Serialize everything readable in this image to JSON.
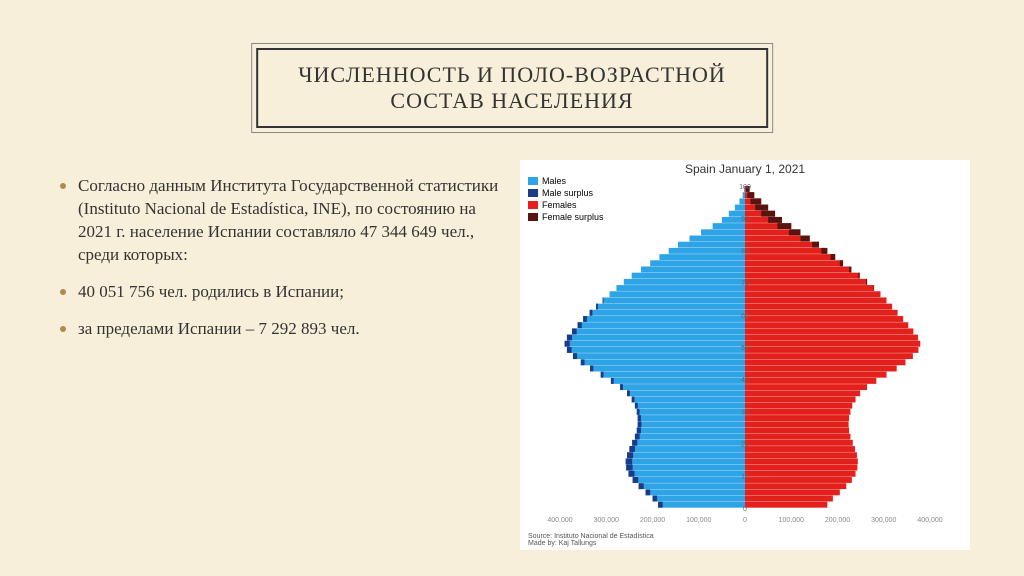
{
  "title_line1": "ЧИСЛЕННОСТЬ И ПОЛО-ВОЗРАСТНОЙ",
  "title_line2": "СОСТАВ НАСЕЛЕНИЯ",
  "bullets": [
    "Согласно данным Института Государственной статистики (Instituto Nacional de Estadística, INE), по состоянию на 2021 г. население Испании составляло 47 344 649 чел., среди которых:",
    "40 051 756 чел. родились в Испании;",
    "за пределами Испании – 7 292 893 чел."
  ],
  "chart": {
    "title": "Spain January 1, 2021",
    "legend": [
      {
        "label": "Males",
        "color": "#2ea3e6"
      },
      {
        "label": "Male surplus",
        "color": "#1b3a8a"
      },
      {
        "label": "Females",
        "color": "#e3201b"
      },
      {
        "label": "Female surplus",
        "color": "#5a1410"
      }
    ],
    "colors": {
      "male": "#2ea3e6",
      "male_surplus": "#1b3a8a",
      "female": "#e3201b",
      "female_surplus": "#5a1410",
      "bg": "#ffffff",
      "axis_text": "#888888"
    },
    "x_ticks": [
      "400,000",
      "300,000",
      "200,000",
      "100,000",
      "0",
      "100,000",
      "200,000",
      "300,000",
      "400,000"
    ],
    "y_ticks": [
      "100",
      "90",
      "80",
      "70",
      "60",
      "50",
      "40",
      "30",
      "20",
      "10",
      "0"
    ],
    "max_value": 400000,
    "age_bins_top_to_bottom": [
      {
        "m": 2,
        "f": 10,
        "ms": 0,
        "fs": 8
      },
      {
        "m": 5,
        "f": 20,
        "ms": 0,
        "fs": 15
      },
      {
        "m": 12,
        "f": 35,
        "ms": 0,
        "fs": 23
      },
      {
        "m": 22,
        "f": 50,
        "ms": 0,
        "fs": 28
      },
      {
        "m": 35,
        "f": 65,
        "ms": 0,
        "fs": 30
      },
      {
        "m": 50,
        "f": 80,
        "ms": 0,
        "fs": 30
      },
      {
        "m": 70,
        "f": 100,
        "ms": 0,
        "fs": 30
      },
      {
        "m": 95,
        "f": 120,
        "ms": 0,
        "fs": 25
      },
      {
        "m": 120,
        "f": 140,
        "ms": 0,
        "fs": 20
      },
      {
        "m": 145,
        "f": 160,
        "ms": 0,
        "fs": 15
      },
      {
        "m": 165,
        "f": 178,
        "ms": 0,
        "fs": 13
      },
      {
        "m": 185,
        "f": 195,
        "ms": 0,
        "fs": 10
      },
      {
        "m": 205,
        "f": 212,
        "ms": 0,
        "fs": 7
      },
      {
        "m": 225,
        "f": 230,
        "ms": 0,
        "fs": 5
      },
      {
        "m": 245,
        "f": 248,
        "ms": 0,
        "fs": 3
      },
      {
        "m": 262,
        "f": 264,
        "ms": 0,
        "fs": 2
      },
      {
        "m": 278,
        "f": 279,
        "ms": 0,
        "fs": 1
      },
      {
        "m": 293,
        "f": 293,
        "ms": 0,
        "fs": 0
      },
      {
        "m": 308,
        "f": 306,
        "ms": 2,
        "fs": 0
      },
      {
        "m": 322,
        "f": 318,
        "ms": 4,
        "fs": 0
      },
      {
        "m": 336,
        "f": 330,
        "ms": 6,
        "fs": 0
      },
      {
        "m": 350,
        "f": 342,
        "ms": 8,
        "fs": 0
      },
      {
        "m": 362,
        "f": 353,
        "ms": 9,
        "fs": 0
      },
      {
        "m": 374,
        "f": 364,
        "ms": 10,
        "fs": 0
      },
      {
        "m": 385,
        "f": 374,
        "ms": 11,
        "fs": 0
      },
      {
        "m": 390,
        "f": 379,
        "ms": 11,
        "fs": 0
      },
      {
        "m": 385,
        "f": 375,
        "ms": 10,
        "fs": 0
      },
      {
        "m": 372,
        "f": 363,
        "ms": 9,
        "fs": 0
      },
      {
        "m": 355,
        "f": 347,
        "ms": 8,
        "fs": 0
      },
      {
        "m": 335,
        "f": 328,
        "ms": 7,
        "fs": 0
      },
      {
        "m": 312,
        "f": 306,
        "ms": 6,
        "fs": 0
      },
      {
        "m": 290,
        "f": 284,
        "ms": 6,
        "fs": 0
      },
      {
        "m": 270,
        "f": 264,
        "ms": 6,
        "fs": 0
      },
      {
        "m": 255,
        "f": 249,
        "ms": 6,
        "fs": 0
      },
      {
        "m": 245,
        "f": 239,
        "ms": 6,
        "fs": 0
      },
      {
        "m": 238,
        "f": 232,
        "ms": 6,
        "fs": 0
      },
      {
        "m": 234,
        "f": 228,
        "ms": 6,
        "fs": 0
      },
      {
        "m": 232,
        "f": 225,
        "ms": 7,
        "fs": 0
      },
      {
        "m": 232,
        "f": 224,
        "ms": 8,
        "fs": 0
      },
      {
        "m": 234,
        "f": 225,
        "ms": 9,
        "fs": 0
      },
      {
        "m": 238,
        "f": 228,
        "ms": 10,
        "fs": 0
      },
      {
        "m": 244,
        "f": 233,
        "ms": 11,
        "fs": 0
      },
      {
        "m": 250,
        "f": 238,
        "ms": 12,
        "fs": 0
      },
      {
        "m": 255,
        "f": 242,
        "ms": 13,
        "fs": 0
      },
      {
        "m": 258,
        "f": 244,
        "ms": 14,
        "fs": 0
      },
      {
        "m": 257,
        "f": 243,
        "ms": 14,
        "fs": 0
      },
      {
        "m": 252,
        "f": 239,
        "ms": 13,
        "fs": 0
      },
      {
        "m": 243,
        "f": 231,
        "ms": 12,
        "fs": 0
      },
      {
        "m": 230,
        "f": 219,
        "ms": 11,
        "fs": 0
      },
      {
        "m": 215,
        "f": 205,
        "ms": 10,
        "fs": 0
      },
      {
        "m": 200,
        "f": 190,
        "ms": 10,
        "fs": 0
      },
      {
        "m": 188,
        "f": 178,
        "ms": 10,
        "fs": 0
      }
    ],
    "source_line1": "Source: Instituto Nacional de Estadística",
    "source_line2": "Made by: Kaj Tallungs"
  }
}
